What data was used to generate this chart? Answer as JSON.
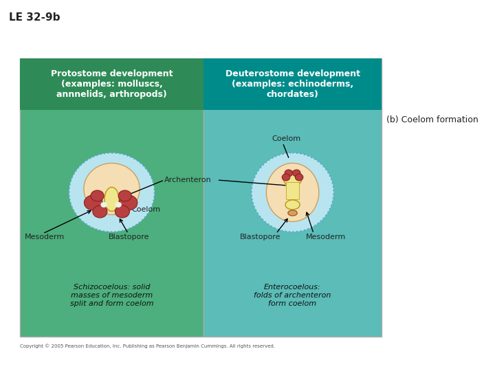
{
  "title": "LE 32-9b",
  "bg_color": "#ffffff",
  "left_panel_bg": "#4caf7d",
  "right_panel_bg": "#5bbcb8",
  "left_header_bg": "#2e8b57",
  "right_header_bg": "#008b8b",
  "left_header_text": "Protostome development\n(examples: molluscs,\nannnelids, arthropods)",
  "right_header_text": "Deuterostome development\n(examples: echinoderms,\nchordates)",
  "header_text_color": "#ffffff",
  "side_label": "(b) Coelom formation",
  "left_desc": "Schizocoelous: solid\nmasses of mesoderm\nsplit and form coelom",
  "right_desc": "Enterocoelous:\nfolds of archenteron\nform coelom",
  "copyright": "Copyright © 2005 Pearson Education, Inc. Publishing as Pearson Benjamin Cummings. All rights reserved.",
  "archenteron_label": "Archenteron",
  "coelom_label_left": "Coelom",
  "coelom_label_right": "Coelom",
  "mesoderm_label_left": "Mesoderm",
  "mesoderm_label_right": "Mesoderm",
  "blastopore_label_left": "Blastopore",
  "blastopore_label_right": "Blastopore",
  "color_outer_ring": "#87ceeb",
  "color_dotted_ring": "#6ab0d0",
  "color_inner_body": "#f5deb3",
  "color_red_mass": "#cd5c5c",
  "color_archenteron": "#f0e68c"
}
